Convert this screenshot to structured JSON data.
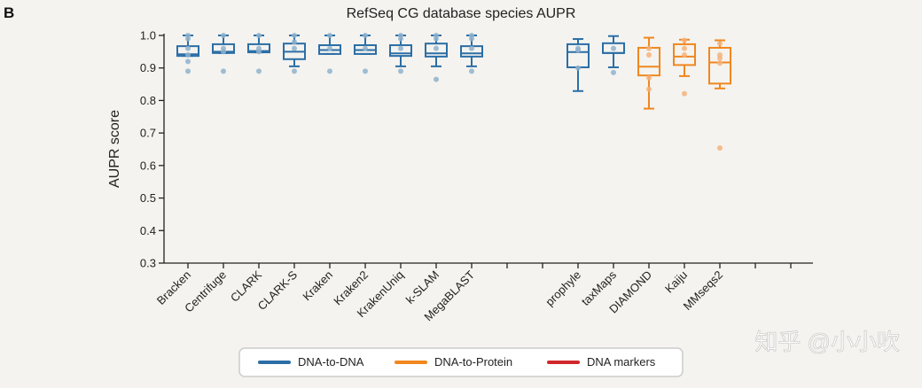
{
  "panel_label": "B",
  "watermark": "知乎 @小小吹",
  "chart_data": {
    "type": "box",
    "title": "RefSeq CG database species AUPR",
    "ylabel": "AUPR score",
    "xlabel": "",
    "ylim": [
      0.3,
      1.0
    ],
    "yticks": [
      1.0,
      0.9,
      0.8,
      0.7,
      0.6,
      0.5,
      0.4,
      0.3
    ],
    "grid": false,
    "legend_position": "bottom-center",
    "legend": [
      {
        "label": "DNA-to-DNA",
        "color": "#2b6ea6"
      },
      {
        "label": "DNA-to-Protein",
        "color": "#f0871f"
      },
      {
        "label": "DNA markers",
        "color": "#d1262a"
      }
    ],
    "slots": [
      {
        "name": "Bracken",
        "group": 0,
        "q1": 0.937,
        "median": 0.942,
        "q3": 0.967,
        "low": 0.937,
        "high": 1.0,
        "points": [
          1.0,
          0.99,
          0.96,
          0.94,
          0.92,
          0.89
        ]
      },
      {
        "name": "Centrifuge",
        "group": 0,
        "q1": 0.946,
        "median": 0.95,
        "q3": 0.973,
        "low": 0.946,
        "high": 1.0,
        "points": [
          1.0,
          0.96,
          0.95,
          0.89
        ]
      },
      {
        "name": "CLARK",
        "group": 0,
        "q1": 0.948,
        "median": 0.952,
        "q3": 0.973,
        "low": 0.948,
        "high": 1.0,
        "points": [
          1.0,
          0.96,
          0.95,
          0.89
        ]
      },
      {
        "name": "CLARK-S",
        "group": 0,
        "q1": 0.927,
        "median": 0.95,
        "q3": 0.975,
        "low": 0.905,
        "high": 1.0,
        "points": [
          1.0,
          0.98,
          0.96,
          0.89
        ]
      },
      {
        "name": "Kraken",
        "group": 0,
        "q1": 0.943,
        "median": 0.955,
        "q3": 0.97,
        "low": 0.943,
        "high": 1.0,
        "points": [
          1.0,
          0.96,
          0.89
        ]
      },
      {
        "name": "Kraken2",
        "group": 0,
        "q1": 0.943,
        "median": 0.955,
        "q3": 0.97,
        "low": 0.943,
        "high": 1.0,
        "points": [
          1.0,
          0.96,
          0.89
        ]
      },
      {
        "name": "KrakenUniq",
        "group": 0,
        "q1": 0.937,
        "median": 0.945,
        "q3": 0.97,
        "low": 0.905,
        "high": 1.0,
        "points": [
          1.0,
          0.99,
          0.96,
          0.89
        ]
      },
      {
        "name": "k-SLAM",
        "group": 0,
        "q1": 0.935,
        "median": 0.945,
        "q3": 0.975,
        "low": 0.905,
        "high": 1.0,
        "points": [
          1.0,
          0.99,
          0.96,
          0.865
        ]
      },
      {
        "name": "MegaBLAST",
        "group": 0,
        "q1": 0.935,
        "median": 0.945,
        "q3": 0.967,
        "low": 0.905,
        "high": 1.0,
        "points": [
          1.0,
          0.99,
          0.96,
          0.89
        ]
      },
      {
        "name": "",
        "group": 2
      },
      {
        "name": "",
        "group": 2
      },
      {
        "name": "prophyle",
        "group": 0,
        "q1": 0.902,
        "median": 0.949,
        "q3": 0.973,
        "low": 0.829,
        "high": 0.989,
        "points": [
          0.96,
          0.955,
          0.9
        ]
      },
      {
        "name": "taxMaps",
        "group": 0,
        "q1": 0.946,
        "median": 0.946,
        "q3": 0.976,
        "low": 0.902,
        "high": 0.998,
        "points": [
          0.96,
          0.886
        ]
      },
      {
        "name": "DIAMOND",
        "group": 1,
        "q1": 0.877,
        "median": 0.904,
        "q3": 0.962,
        "low": 0.775,
        "high": 0.993,
        "points": [
          0.96,
          0.94,
          0.87,
          0.835
        ]
      },
      {
        "name": "Kaiju",
        "group": 1,
        "q1": 0.909,
        "median": 0.935,
        "q3": 0.973,
        "low": 0.875,
        "high": 0.987,
        "points": [
          0.985,
          0.96,
          0.94,
          0.821
        ]
      },
      {
        "name": "MMseqs2",
        "group": 1,
        "q1": 0.852,
        "median": 0.917,
        "q3": 0.962,
        "low": 0.837,
        "high": 0.985,
        "points": [
          0.975,
          0.94,
          0.93,
          0.915,
          0.654
        ]
      },
      {
        "name": "",
        "group": 2
      },
      {
        "name": "",
        "group": 2
      }
    ]
  }
}
